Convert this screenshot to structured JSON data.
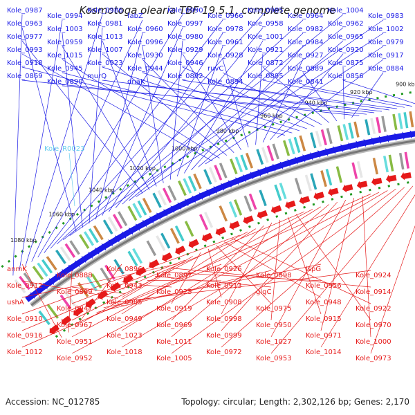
{
  "title": "Kosmotoga olearia TBF 19.5.1, complete genome",
  "footer": {
    "accession": "Accession: NC_012785",
    "topology": "Topology: circular; Length: 2,302,126 bp; Genes: 2,170"
  },
  "colors": {
    "forward_gene": "#1a1ae6",
    "reverse_gene": "#e61a1a",
    "highlight_gene": "#66ccee",
    "scale_tick": "#229922",
    "backbone": "#777777"
  },
  "scale_labels": [
    "900 kbp",
    "920 kbp",
    "940 kbp",
    "960 kbp",
    "980 kbp",
    "1000 kbp",
    "1020 kbp",
    "1040 kbp",
    "1060 kbp",
    "1080 kbp"
  ],
  "forward_genes": [
    "Kole_0987",
    "Kole_0994",
    "Kole_0986",
    "fabZ",
    "Kole_0990",
    "Kole_0966",
    "Kole_0985",
    "Kole_0964",
    "Kole_1004",
    "Kole_0983",
    "Kole_0963",
    "Kole_1003",
    "Kole_0981",
    "Kole_0960",
    "Kole_0997",
    "Kole_0978",
    "Kole_0958",
    "Kole_0982",
    "Kole_0962",
    "Kole_1002",
    "Kole_0977",
    "Kole_0959",
    "Kole_1013",
    "Kole_0996",
    "Kole_0980",
    "Kole_0961",
    "Kole_1001",
    "Kole_0984",
    "Kole_0965",
    "Kole_0979",
    "Kole_0993",
    "Kole_1015",
    "Kole_1007",
    "Kole_0930",
    "Kole_0929",
    "Kole_0928",
    "Kole_0921",
    "Kole_0927",
    "Kole_0920",
    "Kole_0917",
    "Kole_0918",
    "Kole_0945",
    "Kole_0923",
    "Kole_0944",
    "Kole_0946",
    "ruvC",
    "Kole_0872",
    "Kole_0889",
    "Kole_0875",
    "Kole_0884",
    "Kole_0869",
    "Kole_0890",
    "murQ",
    "dnaK",
    "Kole_0892",
    "Kole_0894",
    "Kole_0895",
    "Kole_0841",
    "Kole_0856"
  ],
  "highlight_genes": [
    "Kole_R0023"
  ],
  "reverse_genes": [
    "anmK",
    "Kole_0888",
    "Kole_0896",
    "Kole_0897",
    "Kole_0926",
    "Kole_0898",
    "ispG",
    "Kole_0924",
    "Kole_0912",
    "Kole_0899",
    "Kole_0943",
    "Kole_0925",
    "Kole_0913",
    "glgC",
    "Kole_0956",
    "Kole_0914",
    "ushA",
    "Kole_0947",
    "Kole_0905",
    "Kole_0919",
    "Kole_0908",
    "Kole_0975",
    "Kole_0948",
    "Kole_0922",
    "Kole_0910",
    "Kole_0967",
    "Kole_0949",
    "Kole_0969",
    "Kole_0998",
    "Kole_0950",
    "Kole_0915",
    "Kole_0970",
    "Kole_0916",
    "Kole_0951",
    "Kole_1023",
    "Kole_1011",
    "Kole_0999",
    "Kole_1027",
    "Kole_0971",
    "Kole_1000",
    "Kole_1012",
    "Kole_0952",
    "Kole_1018",
    "Kole_1005",
    "Kole_0972",
    "Kole_0953",
    "Kole_1014",
    "Kole_0973"
  ]
}
